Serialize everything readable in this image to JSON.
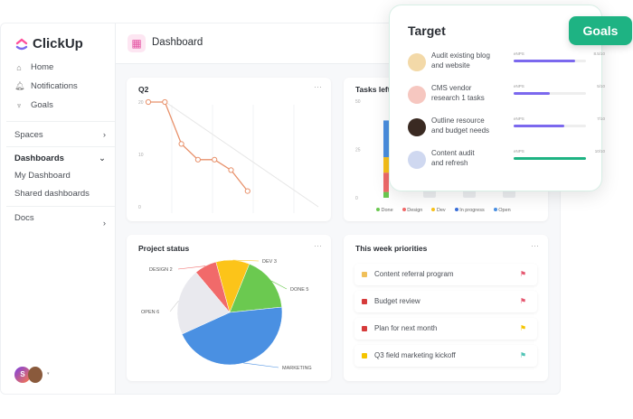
{
  "app": {
    "brand": "ClickUp",
    "header_title": "Dashboard"
  },
  "sidebar": {
    "items": [
      {
        "label": "Home",
        "icon": "home-icon"
      },
      {
        "label": "Notifications",
        "icon": "bell-icon"
      },
      {
        "label": "Goals",
        "icon": "trophy-icon"
      }
    ],
    "spaces": "Spaces",
    "dashboards": "Dashboards",
    "dash_items": [
      "My Dashboard",
      "Shared dashboards"
    ],
    "docs": "Docs",
    "avatar_initial": "S"
  },
  "target": {
    "title": "Target",
    "badge": "Goals",
    "rows": [
      {
        "name1": "Audit existing blog",
        "name2": "and website",
        "metric": "eNPS",
        "score": "8.5/10",
        "progress": 0.85,
        "color": "#7b68ee"
      },
      {
        "name1": "CMS vendor",
        "name2": "research 1 tasks",
        "metric": "eNPS",
        "score": "5/10",
        "progress": 0.5,
        "color": "#7b68ee"
      },
      {
        "name1": "Outline resource",
        "name2": "and budget needs",
        "metric": "eNPS",
        "score": "7/10",
        "progress": 0.7,
        "color": "#7b68ee"
      },
      {
        "name1": "Content audit",
        "name2": "and refresh",
        "metric": "eNPS",
        "score": "10/10",
        "progress": 1.0,
        "color": "#1eb383"
      }
    ]
  },
  "chart_data": [
    {
      "type": "line",
      "title": "Q2",
      "yticks": [
        "20",
        "10",
        "0"
      ],
      "ylim": [
        0,
        20
      ],
      "values": [
        20,
        20,
        12,
        9,
        9,
        7,
        3
      ],
      "ideal": [
        20,
        0
      ],
      "color": "#e8916b"
    },
    {
      "type": "bar",
      "title": "Tasks left",
      "yticks": [
        "50",
        "25",
        "0"
      ],
      "ylim": [
        0,
        50
      ],
      "legend": [
        {
          "name": "Done",
          "color": "#6bc950"
        },
        {
          "name": "Design",
          "color": "#f16a6a"
        },
        {
          "name": "Dev",
          "color": "#f9c21a"
        },
        {
          "name": "In progress",
          "color": "#3a6fd8"
        },
        {
          "name": "Open",
          "color": "#4a90e2"
        }
      ],
      "stack": [
        {
          "name": "Done",
          "value": 3
        },
        {
          "name": "Design",
          "value": 10
        },
        {
          "name": "Dev",
          "value": 8
        },
        {
          "name": "Open",
          "value": 19
        }
      ]
    },
    {
      "type": "pie",
      "title": "Project status",
      "slices": [
        {
          "label": "DESIGN 2",
          "value": 2,
          "color": "#f16a6a"
        },
        {
          "label": "DEV 3",
          "value": 3,
          "color": "#fcc419"
        },
        {
          "label": "DONE 5",
          "value": 5,
          "color": "#6bc950"
        },
        {
          "label": "MARKETING",
          "value": 13,
          "color": "#4a90e2"
        },
        {
          "label": "OPEN 6",
          "value": 6,
          "color": "#e9e9ee"
        }
      ]
    }
  ],
  "priorities": {
    "title": "This week priorities",
    "items": [
      {
        "label": "Content referral program",
        "square": "#f0c05a",
        "flag": "#e5566f"
      },
      {
        "label": "Budget review",
        "square": "#d63b3b",
        "flag": "#e5566f"
      },
      {
        "label": "Plan for next month",
        "square": "#d63b3b",
        "flag": "#f5c400"
      },
      {
        "label": "Q3 field marketing kickoff",
        "square": "#f5c400",
        "flag": "#4fc3b5"
      }
    ]
  },
  "menu_label": "···"
}
